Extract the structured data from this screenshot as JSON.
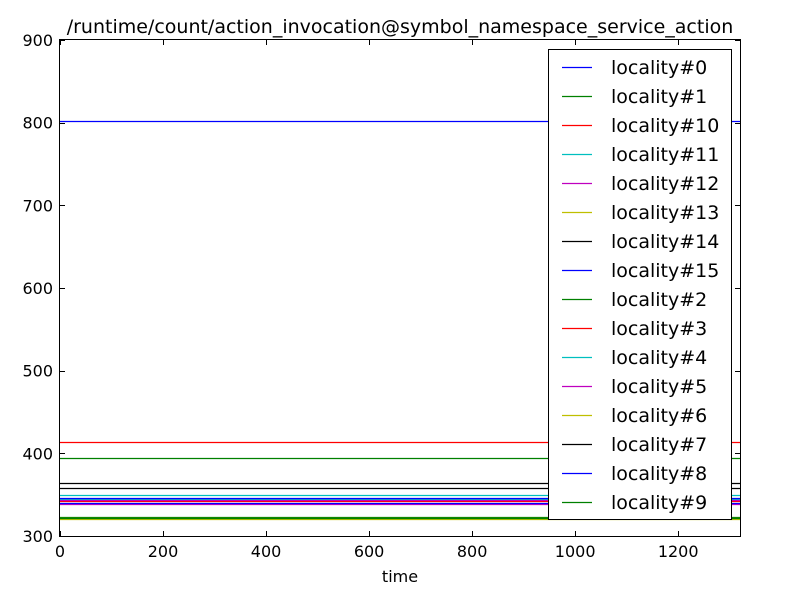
{
  "chart_data": {
    "type": "line",
    "title": "/runtime/count/action_invocation@symbol_namespace_service_action",
    "xlabel": "time",
    "ylabel": "",
    "xlim": [
      0,
      1320
    ],
    "ylim": [
      300,
      900
    ],
    "x_ticks": [
      "0",
      "200",
      "400",
      "600",
      "800",
      "1000",
      "1200"
    ],
    "y_ticks": [
      "300",
      "400",
      "500",
      "600",
      "700",
      "800",
      "900"
    ],
    "grid": false,
    "legend_position": "top-right",
    "x": [
      0,
      1320
    ],
    "series": [
      {
        "name": "locality#0",
        "color": "#0000ff",
        "values": [
          802,
          802
        ]
      },
      {
        "name": "locality#1",
        "color": "#008000",
        "values": [
          394,
          394
        ]
      },
      {
        "name": "locality#10",
        "color": "#ff0000",
        "values": [
          414,
          414
        ]
      },
      {
        "name": "locality#11",
        "color": "#00bfbf",
        "values": [
          349,
          349
        ]
      },
      {
        "name": "locality#12",
        "color": "#bf00bf",
        "values": [
          339,
          339
        ]
      },
      {
        "name": "locality#13",
        "color": "#bfbf00",
        "values": [
          321,
          321
        ]
      },
      {
        "name": "locality#14",
        "color": "#000000",
        "values": [
          364,
          364
        ]
      },
      {
        "name": "locality#15",
        "color": "#0000ff",
        "values": [
          340,
          340
        ]
      },
      {
        "name": "locality#2",
        "color": "#008000",
        "values": [
          323,
          323
        ]
      },
      {
        "name": "locality#3",
        "color": "#ff0000",
        "values": [
          342,
          342
        ]
      },
      {
        "name": "locality#4",
        "color": "#00bfbf",
        "values": [
          345,
          345
        ]
      },
      {
        "name": "locality#5",
        "color": "#bf00bf",
        "values": [
          344,
          344
        ]
      },
      {
        "name": "locality#6",
        "color": "#bfbf00",
        "values": [
          322,
          322
        ]
      },
      {
        "name": "locality#7",
        "color": "#000000",
        "values": [
          358,
          358
        ]
      },
      {
        "name": "locality#8",
        "color": "#0000ff",
        "values": [
          346,
          346
        ]
      },
      {
        "name": "locality#9",
        "color": "#008000",
        "values": [
          322,
          322
        ]
      }
    ]
  }
}
